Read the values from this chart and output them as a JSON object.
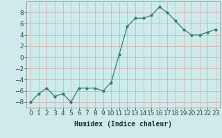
{
  "x": [
    0,
    1,
    2,
    3,
    4,
    5,
    6,
    7,
    8,
    9,
    10,
    11,
    12,
    13,
    14,
    15,
    16,
    17,
    18,
    19,
    20,
    21,
    22,
    23
  ],
  "y": [
    -8,
    -6.5,
    -5.5,
    -7,
    -6.5,
    -8,
    -5.5,
    -5.5,
    -5.5,
    -6,
    -4.5,
    0.5,
    5.5,
    7,
    7,
    7.5,
    9,
    8,
    6.5,
    5,
    4,
    4,
    4.5,
    5
  ],
  "line_color": "#2e7d6e",
  "marker": "o",
  "marker_size": 2.0,
  "bg_color": "#ceeaea",
  "grid_color": "#b8d8d8",
  "xlabel": "Humidex (Indice chaleur)",
  "xlabel_fontsize": 7,
  "tick_fontsize": 6.5,
  "ylim": [
    -9,
    10
  ],
  "yticks": [
    -8,
    -6,
    -4,
    -2,
    0,
    2,
    4,
    6,
    8
  ],
  "xlim": [
    -0.5,
    23.5
  ],
  "xticks": [
    0,
    1,
    2,
    3,
    4,
    5,
    6,
    7,
    8,
    9,
    10,
    11,
    12,
    13,
    14,
    15,
    16,
    17,
    18,
    19,
    20,
    21,
    22,
    23
  ],
  "line_width": 0.9,
  "title": ""
}
